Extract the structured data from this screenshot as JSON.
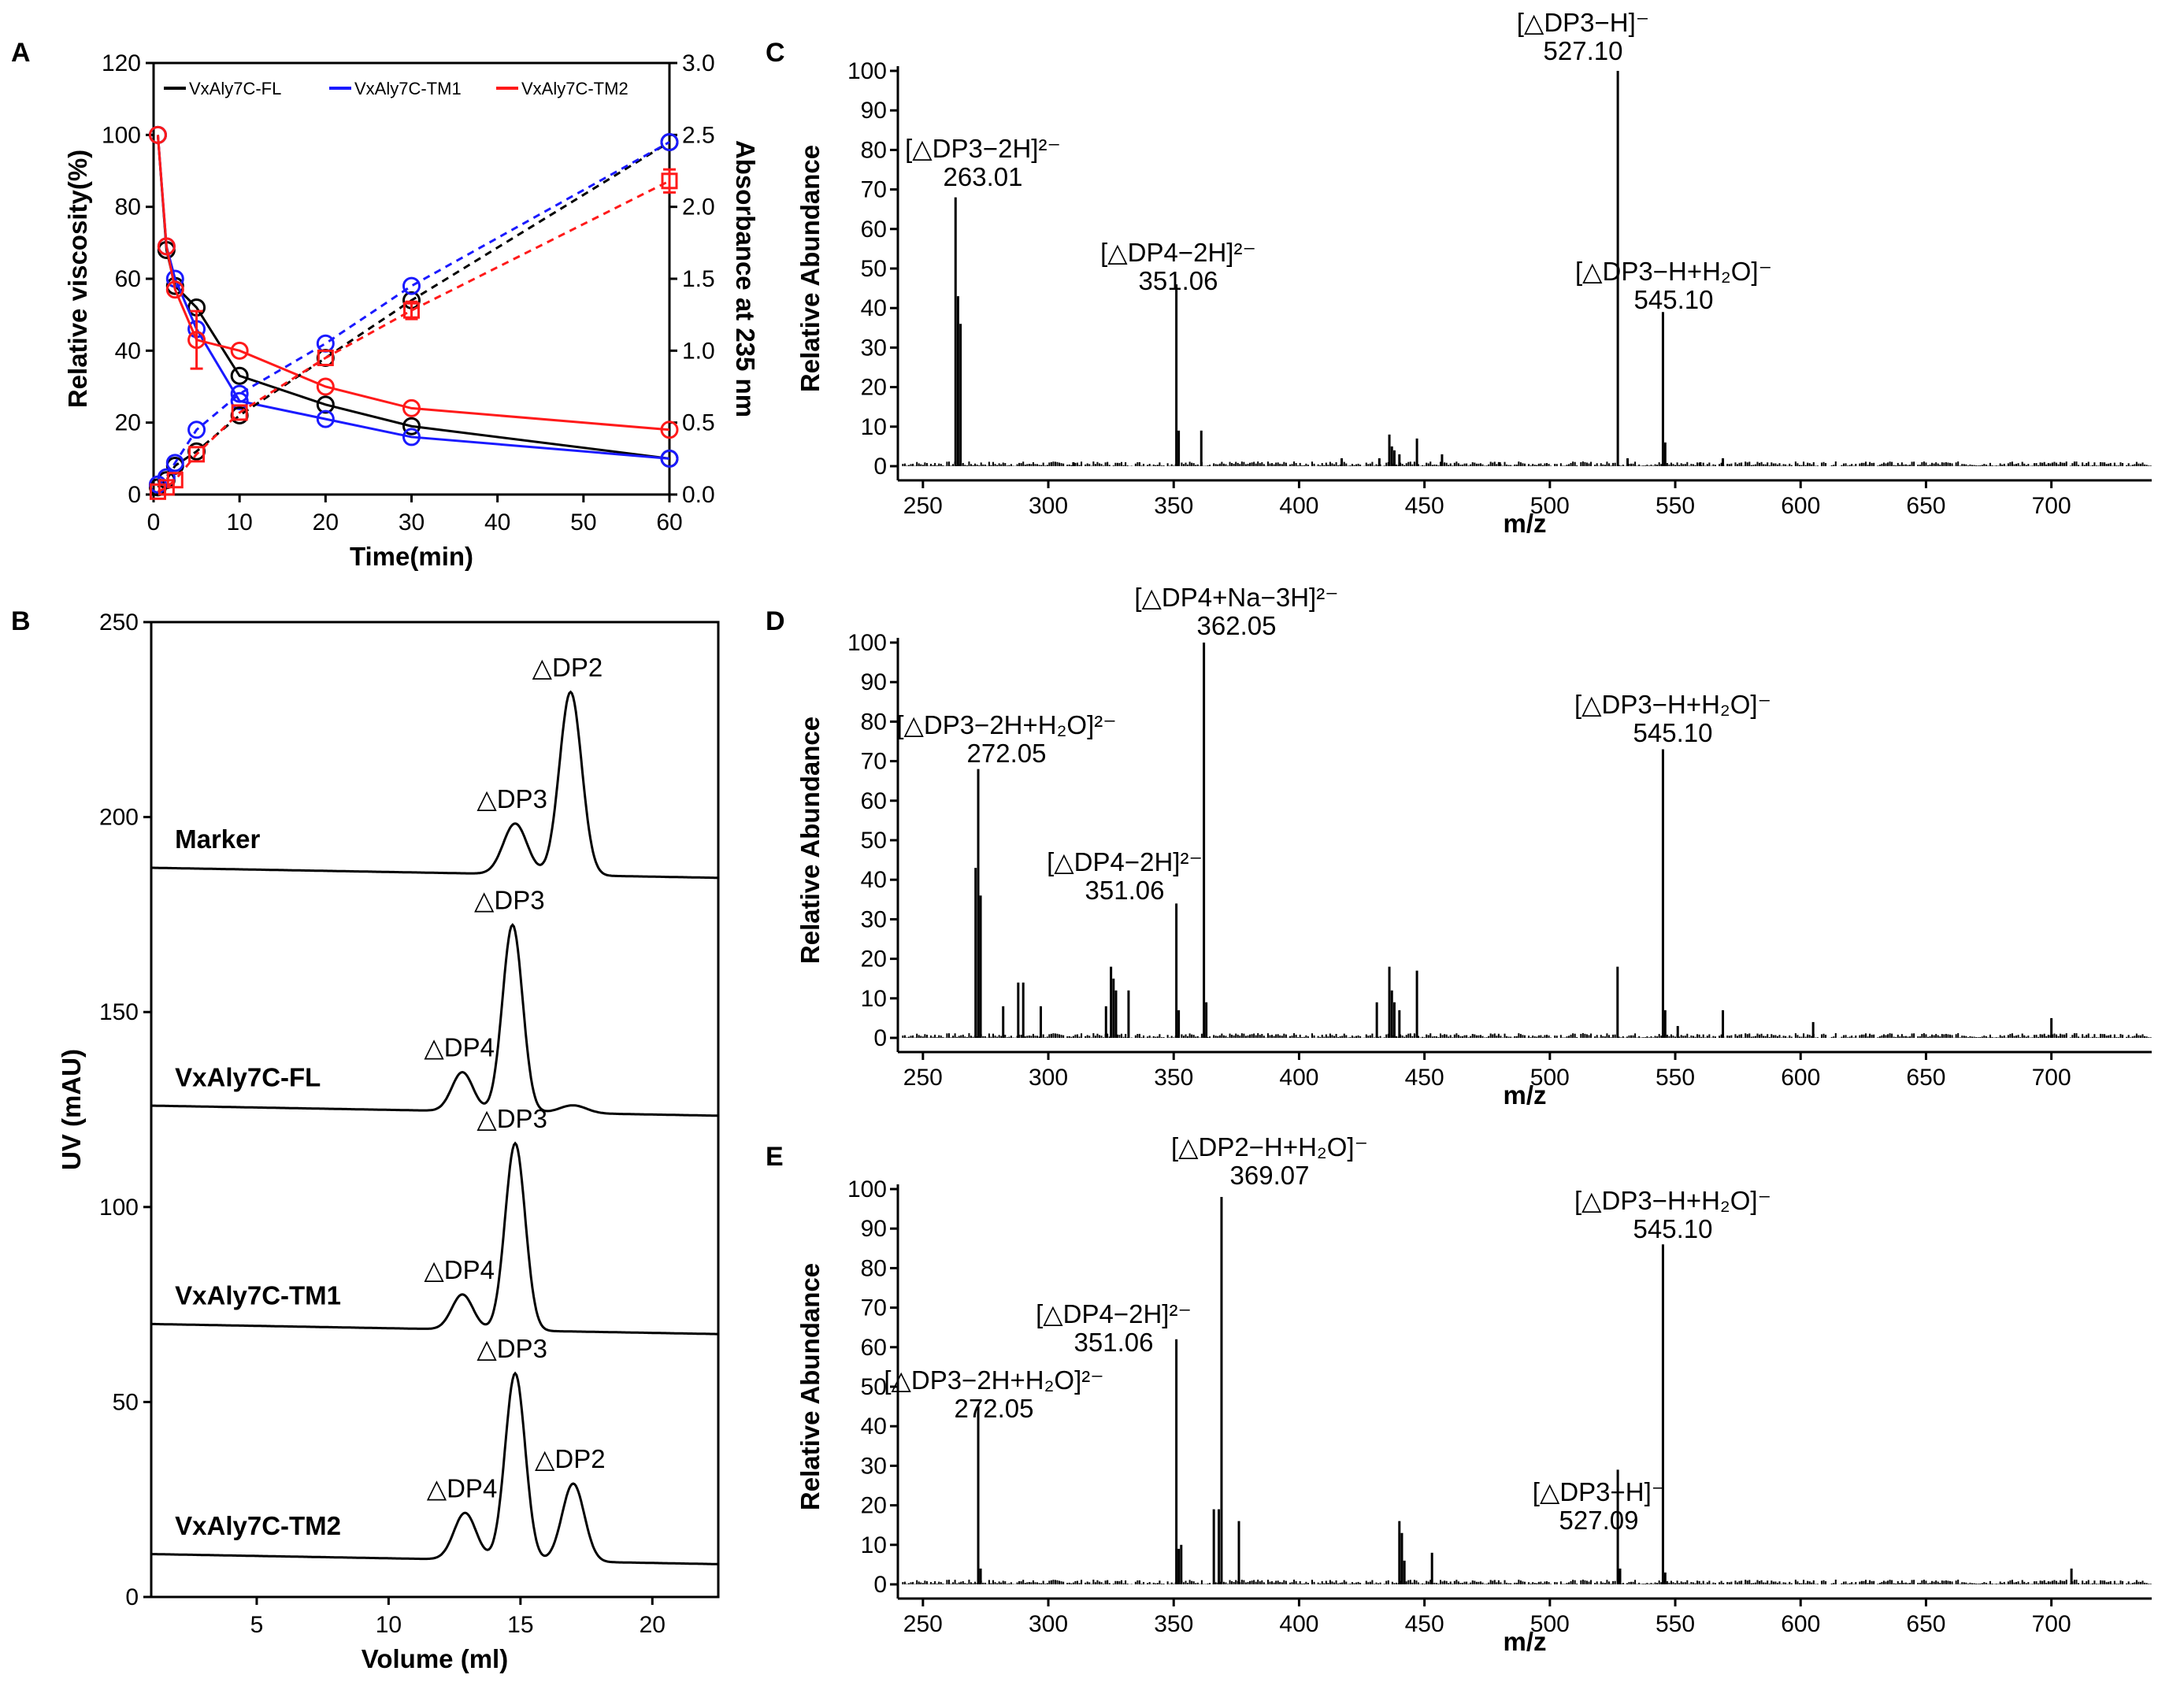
{
  "colors": {
    "fl": "#000000",
    "tm1": "#1a1aff",
    "tm2": "#ff1a1a"
  },
  "chart_data": [
    {
      "panel": "A",
      "type": "line",
      "xlabel": "Time(min)",
      "ylabel": "Relative viscosity(%)",
      "y2label": "Absorbance at 235 nm",
      "xlim": [
        0,
        60
      ],
      "ylim": [
        0,
        120
      ],
      "y2lim": [
        0,
        3.0
      ],
      "xticks": [
        0,
        10,
        20,
        30,
        40,
        50,
        60
      ],
      "yticks": [
        0,
        20,
        40,
        60,
        80,
        100,
        120
      ],
      "y2ticks": [
        "0.0",
        "0.5",
        "1.0",
        "1.5",
        "2.0",
        "2.5",
        "3.0"
      ],
      "legend_position": "top",
      "x": [
        0.5,
        1.5,
        2.5,
        5,
        10,
        20,
        30,
        60
      ],
      "series": [
        {
          "name": "VxAly7C-FL",
          "color": "#000000",
          "axis": "left",
          "style": "solid",
          "marker": "circle",
          "values": [
            100,
            68,
            58,
            52,
            33,
            25,
            19,
            10
          ]
        },
        {
          "name": "VxAly7C-TM1",
          "color": "#1a1aff",
          "axis": "left",
          "style": "solid",
          "marker": "circle",
          "values": [
            100,
            69,
            60,
            46,
            26,
            21,
            16,
            10
          ]
        },
        {
          "name": "VxAly7C-TM2",
          "color": "#ff1a1a",
          "axis": "left",
          "style": "solid",
          "marker": "circle",
          "values": [
            100,
            69,
            57,
            43,
            40,
            30,
            24,
            18
          ],
          "errors": [
            0,
            0,
            0,
            8,
            0,
            0,
            0,
            0
          ]
        },
        {
          "name": "VxAly7C-FL",
          "color": "#000000",
          "axis": "right",
          "style": "dashed",
          "marker": "circle",
          "values": [
            0.05,
            0.1,
            0.2,
            0.3,
            0.55,
            0.95,
            1.35,
            2.45
          ]
        },
        {
          "name": "VxAly7C-TM1",
          "color": "#1a1aff",
          "axis": "right",
          "style": "dashed",
          "marker": "circle",
          "values": [
            0.07,
            0.12,
            0.22,
            0.45,
            0.7,
            1.05,
            1.45,
            2.45
          ]
        },
        {
          "name": "VxAly7C-TM2",
          "color": "#ff1a1a",
          "axis": "right",
          "style": "dashed",
          "marker": "square",
          "values": [
            0.02,
            0.05,
            0.1,
            0.28,
            0.57,
            0.95,
            1.28,
            2.18
          ],
          "errors": [
            0,
            0,
            0,
            0,
            0,
            0,
            0.06,
            0.08
          ]
        }
      ]
    },
    {
      "panel": "B",
      "type": "line",
      "xlabel": "Volume (ml)",
      "ylabel": "UV (mAU)",
      "xlim": [
        1,
        22.5
      ],
      "ylim": [
        0,
        250
      ],
      "xticks": [
        5,
        10,
        15,
        20
      ],
      "yticks": [
        0,
        50,
        100,
        150,
        200,
        250
      ],
      "traces": [
        {
          "name": "Marker",
          "baseline": 187,
          "peaks": [
            {
              "label": "△DP3",
              "x": 14.8,
              "h": 13,
              "w": 0.45
            },
            {
              "label": "△DP2",
              "x": 16.9,
              "h": 47,
              "w": 0.42
            }
          ]
        },
        {
          "name": "VxAly7C-FL",
          "baseline": 126,
          "peaks": [
            {
              "label": "△DP4",
              "x": 12.8,
              "h": 10,
              "w": 0.4
            },
            {
              "label": "△DP3",
              "x": 14.7,
              "h": 48,
              "w": 0.38
            },
            {
              "label": "",
              "x": 17.0,
              "h": 2,
              "w": 0.5
            }
          ]
        },
        {
          "name": "VxAly7C-TM1",
          "baseline": 70,
          "peaks": [
            {
              "label": "△DP4",
              "x": 12.8,
              "h": 9,
              "w": 0.4
            },
            {
              "label": "△DP3",
              "x": 14.8,
              "h": 48,
              "w": 0.38
            }
          ]
        },
        {
          "name": "VxAly7C-TM2",
          "baseline": 11,
          "peaks": [
            {
              "label": "△DP4",
              "x": 12.9,
              "h": 12,
              "w": 0.42
            },
            {
              "label": "△DP3",
              "x": 14.8,
              "h": 48,
              "w": 0.38
            },
            {
              "label": "△DP2",
              "x": 17.0,
              "h": 20,
              "w": 0.42
            }
          ]
        }
      ]
    },
    {
      "panel": "C",
      "type": "bar",
      "xlabel": "m/z",
      "ylabel": "Relative Abundance",
      "xlim": [
        240,
        740
      ],
      "ylim": [
        0,
        100
      ],
      "xticks": [
        250,
        300,
        350,
        400,
        450,
        500,
        550,
        600,
        650,
        700
      ],
      "yticks": [
        0,
        10,
        20,
        30,
        40,
        50,
        60,
        70,
        80,
        90,
        100
      ],
      "peaks": [
        [
          263.01,
          68
        ],
        [
          264,
          43
        ],
        [
          265,
          36
        ],
        [
          351.06,
          46
        ],
        [
          352,
          9
        ],
        [
          361,
          9
        ],
        [
          436,
          8
        ],
        [
          437,
          5
        ],
        [
          438,
          4
        ],
        [
          440,
          3
        ],
        [
          447,
          7
        ],
        [
          432,
          2
        ],
        [
          417,
          2
        ],
        [
          457,
          3
        ],
        [
          527.1,
          100
        ],
        [
          545.1,
          39
        ],
        [
          546,
          6
        ],
        [
          531,
          2
        ],
        [
          569,
          2
        ],
        [
          310,
          1
        ],
        [
          480,
          1
        ],
        [
          560,
          1
        ]
      ],
      "annotations": [
        {
          "x": 527.1,
          "label": "[△DP3−H]⁻",
          "value": "527.10"
        },
        {
          "x": 263.01,
          "label": "[△DP3−2H]²⁻",
          "value": "263.01"
        },
        {
          "x": 351.06,
          "label": "[△DP4−2H]²⁻",
          "value": "351.06"
        },
        {
          "x": 545.1,
          "label": "[△DP3−H+H₂O]⁻",
          "value": "545.10"
        }
      ]
    },
    {
      "panel": "D",
      "type": "bar",
      "xlabel": "m/z",
      "ylabel": "Relative Abundance",
      "xlim": [
        240,
        740
      ],
      "ylim": [
        0,
        100
      ],
      "xticks": [
        250,
        300,
        350,
        400,
        450,
        500,
        550,
        600,
        650,
        700
      ],
      "yticks": [
        0,
        10,
        20,
        30,
        40,
        50,
        60,
        70,
        80,
        90,
        100
      ],
      "peaks": [
        [
          272.05,
          68
        ],
        [
          271,
          43
        ],
        [
          273,
          36
        ],
        [
          282,
          8
        ],
        [
          288,
          14
        ],
        [
          290,
          14
        ],
        [
          297,
          8
        ],
        [
          325,
          18
        ],
        [
          326,
          15
        ],
        [
          327,
          12
        ],
        [
          323,
          8
        ],
        [
          332,
          12
        ],
        [
          351.06,
          34
        ],
        [
          352,
          7
        ],
        [
          362.05,
          100
        ],
        [
          363,
          9
        ],
        [
          431,
          9
        ],
        [
          436,
          18
        ],
        [
          437,
          12
        ],
        [
          438,
          9
        ],
        [
          440,
          7
        ],
        [
          447,
          17
        ],
        [
          527,
          18
        ],
        [
          545.1,
          73
        ],
        [
          546,
          7
        ],
        [
          551,
          3
        ],
        [
          569,
          7
        ],
        [
          605,
          4
        ],
        [
          700,
          5
        ]
      ],
      "annotations": [
        {
          "x": 362.05,
          "label": "[△DP4+Na−3H]²⁻",
          "value": "362.05"
        },
        {
          "x": 272.05,
          "label": "[△DP3−2H+H₂O]²⁻",
          "value": "272.05"
        },
        {
          "x": 351.06,
          "label": "[△DP4−2H]²⁻",
          "value": "351.06"
        },
        {
          "x": 545.1,
          "label": "[△DP3−H+H₂O]⁻",
          "value": "545.10"
        }
      ]
    },
    {
      "panel": "E",
      "type": "bar",
      "xlabel": "m/z",
      "ylabel": "Relative Abundance",
      "xlim": [
        240,
        740
      ],
      "ylim": [
        0,
        100
      ],
      "xticks": [
        250,
        300,
        350,
        400,
        450,
        500,
        550,
        600,
        650,
        700
      ],
      "yticks": [
        0,
        10,
        20,
        30,
        40,
        50,
        60,
        70,
        80,
        90,
        100
      ],
      "peaks": [
        [
          272.05,
          45
        ],
        [
          273,
          4
        ],
        [
          351.06,
          62
        ],
        [
          352,
          9
        ],
        [
          353,
          10
        ],
        [
          366,
          19
        ],
        [
          368,
          19
        ],
        [
          369.07,
          98
        ],
        [
          376,
          16
        ],
        [
          440,
          16
        ],
        [
          441,
          13
        ],
        [
          442,
          6
        ],
        [
          453,
          8
        ],
        [
          527.09,
          29
        ],
        [
          528,
          4
        ],
        [
          545.1,
          86
        ],
        [
          546,
          3
        ],
        [
          708,
          4
        ]
      ],
      "annotations": [
        {
          "x": 369.07,
          "label": "[△DP2−H+H₂O]⁻",
          "value": "369.07"
        },
        {
          "x": 545.1,
          "label": "[△DP3−H+H₂O]⁻",
          "value": "545.10"
        },
        {
          "x": 351.06,
          "label": "[△DP4−2H]²⁻",
          "value": "351.06"
        },
        {
          "x": 272.05,
          "label": "[△DP3−2H+H₂O]²⁻",
          "value": "272.05"
        },
        {
          "x": 527.09,
          "label": "[△DP3−H]⁻",
          "value": "527.09"
        }
      ]
    }
  ]
}
